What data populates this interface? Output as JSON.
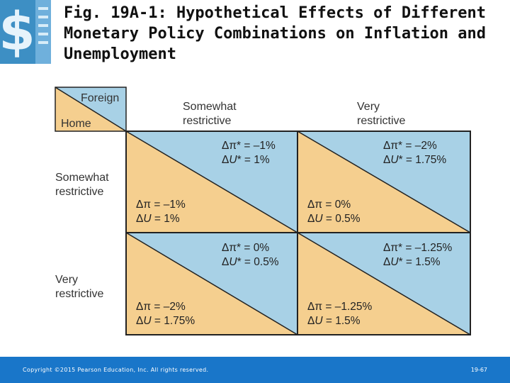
{
  "title": "Fig. 19A-1: Hypothetical Effects of Different Monetary Policy Combinations on Inflation and Unemployment",
  "colors": {
    "foreign": "#a8d1e6",
    "home": "#f5cf8f",
    "border": "#222222",
    "footer": "#1976c9"
  },
  "corner": {
    "foreign": "Foreign",
    "home": "Home"
  },
  "columns": [
    "Somewhat\nrestrictive",
    "Very\nrestrictive"
  ],
  "rows": [
    "Somewhat\nrestrictive",
    "Very\nrestrictive"
  ],
  "cells": [
    [
      {
        "foreign_pi": "Δπ* = –1%",
        "foreign_u": "= 1%",
        "home_pi": "Δπ = –1%",
        "home_u": "= 1%"
      },
      {
        "foreign_pi": "Δπ* = –2%",
        "foreign_u": "= 1.75%",
        "home_pi": "Δπ = 0%",
        "home_u": "= 0.5%"
      }
    ],
    [
      {
        "foreign_pi": "Δπ* = 0%",
        "foreign_u": "= 0.5%",
        "home_pi": "Δπ = –2%",
        "home_u": "= 1.75%"
      },
      {
        "foreign_pi": "Δπ* = –1.25%",
        "foreign_u": "= 1.5%",
        "home_pi": "Δπ = –1.25%",
        "home_u": "= 1.5%"
      }
    ]
  ],
  "footer": {
    "copyright": "Copyright ©2015 Pearson Education, Inc. All rights reserved.",
    "page": "19-67"
  }
}
